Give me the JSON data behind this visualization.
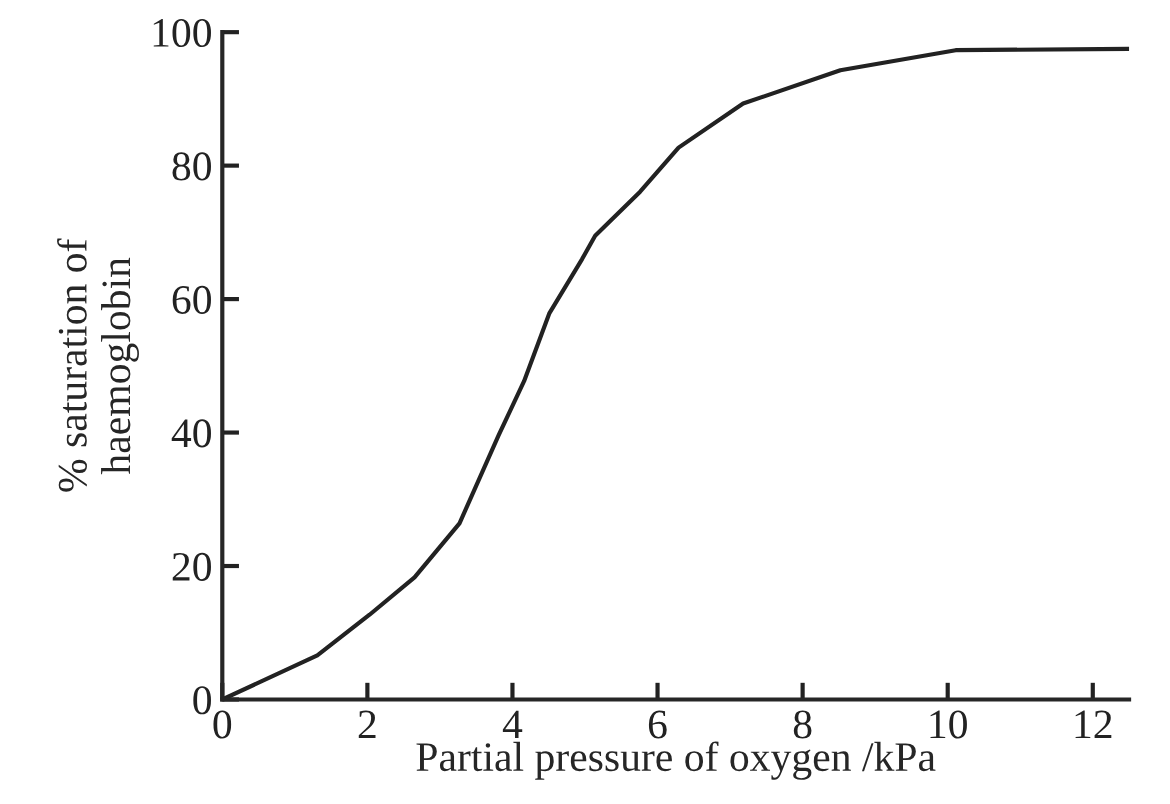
{
  "chart_data": {
    "type": "line",
    "xlabel": "Partial pressure of oxygen /kPa",
    "ylabel": "% saturation of\nhaemoglobin",
    "x": [
      0,
      1.31,
      2.03,
      2.65,
      3.27,
      3.81,
      4.16,
      4.51,
      4.96,
      5.14,
      5.76,
      6.29,
      7.18,
      8.52,
      10.11,
      12.5
    ],
    "series": [
      {
        "color": "#222222",
        "values": [
          0,
          6.6,
          12.7,
          18.3,
          26.4,
          39.6,
          47.7,
          57.9,
          66,
          69.5,
          76.1,
          82.7,
          89.3,
          94.3,
          97.3,
          97.5
        ]
      }
    ],
    "xlim": [
      0,
      12.5
    ],
    "xticks": [
      0,
      2,
      4,
      6,
      8,
      10,
      12
    ],
    "ylim": [
      0,
      100
    ],
    "yticks": [
      0,
      20,
      40,
      60,
      80,
      100
    ],
    "grid": false,
    "marker": "none",
    "line_style": "solid"
  }
}
